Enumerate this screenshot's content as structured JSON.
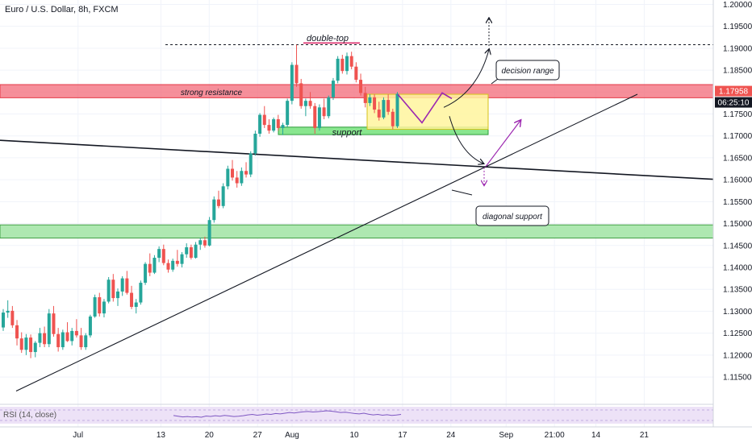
{
  "header": {
    "title": "Euro / U.S. Dollar, 8h, FXCM"
  },
  "chart_data": {
    "type": "candlestick",
    "y_ticks": [
      "1.20000",
      "1.19500",
      "1.19000",
      "1.18500",
      "1.18000",
      "1.17500",
      "1.17000",
      "1.16500",
      "1.16000",
      "1.15500",
      "1.15000",
      "1.14500",
      "1.14000",
      "1.13500",
      "1.13000",
      "1.12500",
      "1.12000",
      "1.11500"
    ],
    "y_tick_values": [
      1.2,
      1.195,
      1.19,
      1.185,
      1.18,
      1.175,
      1.17,
      1.165,
      1.16,
      1.155,
      1.15,
      1.145,
      1.14,
      1.135,
      1.13,
      1.125,
      1.12,
      1.115
    ],
    "ylim": [
      1.1095,
      1.201
    ],
    "x_ticks": [
      "Jul",
      "13",
      "20",
      "27",
      "Aug",
      "10",
      "17",
      "24",
      "Sep",
      "21:00",
      "14",
      "21"
    ],
    "x_tick_days": [
      0,
      12,
      19,
      26,
      31,
      40,
      47,
      54,
      62,
      69,
      75,
      82
    ],
    "xlim": [
      -11.3,
      92.0
    ],
    "last_price": "1.17958",
    "countdown": "06:25:10",
    "annotations": {
      "double_top": "double-top",
      "strong_resistance": "strong resistance",
      "support": "support",
      "decision_range": "decision range",
      "diagonal_support": "diagonal support"
    },
    "zones": {
      "resistance": [
        1.1787,
        1.1817
      ],
      "support": [
        1.1703,
        1.172
      ],
      "lower_support": [
        1.1467,
        1.1497
      ],
      "decision": [
        1.1715,
        1.1795
      ],
      "double_top_line": 1.1908
    },
    "rsi_label": "RSI (14, close)",
    "colors": {
      "up": "#26a69a",
      "down": "#ef5350",
      "arrow": "#9c27b0",
      "line": "#131722"
    },
    "candles": [
      [
        1.1263,
        1.1305,
        1.1255,
        1.1297
      ],
      [
        1.1297,
        1.1325,
        1.1285,
        1.1301
      ],
      [
        1.1301,
        1.1312,
        1.1262,
        1.1268
      ],
      [
        1.1268,
        1.128,
        1.1222,
        1.1238
      ],
      [
        1.1238,
        1.1252,
        1.1205,
        1.1212
      ],
      [
        1.1212,
        1.1248,
        1.12,
        1.124
      ],
      [
        1.124,
        1.1247,
        1.1193,
        1.1207
      ],
      [
        1.1207,
        1.1232,
        1.1195,
        1.1228
      ],
      [
        1.1228,
        1.1262,
        1.1218,
        1.125
      ],
      [
        1.125,
        1.1265,
        1.1218,
        1.1225
      ],
      [
        1.1225,
        1.1305,
        1.1218,
        1.1295
      ],
      [
        1.1295,
        1.1312,
        1.1242,
        1.1248
      ],
      [
        1.1248,
        1.1262,
        1.1208,
        1.1218
      ],
      [
        1.1218,
        1.1258,
        1.1212,
        1.1252
      ],
      [
        1.1252,
        1.1275,
        1.123,
        1.1232
      ],
      [
        1.1232,
        1.1262,
        1.1222,
        1.1255
      ],
      [
        1.1255,
        1.1282,
        1.124,
        1.1245
      ],
      [
        1.1245,
        1.1262,
        1.1212,
        1.1218
      ],
      [
        1.1218,
        1.125,
        1.1212,
        1.1245
      ],
      [
        1.1245,
        1.1292,
        1.124,
        1.1288
      ],
      [
        1.1288,
        1.1338,
        1.1285,
        1.1332
      ],
      [
        1.1332,
        1.1342,
        1.1288,
        1.1295
      ],
      [
        1.1295,
        1.1328,
        1.1286,
        1.1322
      ],
      [
        1.1322,
        1.1378,
        1.1318,
        1.1372
      ],
      [
        1.1372,
        1.1385,
        1.1322,
        1.133
      ],
      [
        1.133,
        1.1352,
        1.1312,
        1.1345
      ],
      [
        1.1345,
        1.138,
        1.1335,
        1.1375
      ],
      [
        1.1375,
        1.1392,
        1.1338,
        1.1342
      ],
      [
        1.1342,
        1.1358,
        1.1305,
        1.131
      ],
      [
        1.131,
        1.1328,
        1.1295,
        1.132
      ],
      [
        1.132,
        1.137,
        1.1315,
        1.1365
      ],
      [
        1.1365,
        1.1412,
        1.136,
        1.1408
      ],
      [
        1.1408,
        1.1432,
        1.138,
        1.1388
      ],
      [
        1.1388,
        1.1428,
        1.1385,
        1.1422
      ],
      [
        1.1422,
        1.1448,
        1.1412,
        1.1442
      ],
      [
        1.1442,
        1.1452,
        1.1405,
        1.141
      ],
      [
        1.141,
        1.1418,
        1.1388,
        1.1395
      ],
      [
        1.1395,
        1.142,
        1.139,
        1.1415
      ],
      [
        1.1415,
        1.144,
        1.1402,
        1.1408
      ],
      [
        1.1408,
        1.1435,
        1.14,
        1.143
      ],
      [
        1.143,
        1.1455,
        1.1422,
        1.1446
      ],
      [
        1.1446,
        1.1452,
        1.1418,
        1.1422
      ],
      [
        1.1422,
        1.1458,
        1.142,
        1.1452
      ],
      [
        1.1452,
        1.1468,
        1.144,
        1.1462
      ],
      [
        1.1462,
        1.147,
        1.1445,
        1.145
      ],
      [
        1.145,
        1.1515,
        1.1448,
        1.1508
      ],
      [
        1.1508,
        1.1562,
        1.1502,
        1.1555
      ],
      [
        1.1555,
        1.1575,
        1.1535,
        1.154
      ],
      [
        1.154,
        1.1592,
        1.1535,
        1.1585
      ],
      [
        1.1585,
        1.1632,
        1.1578,
        1.1625
      ],
      [
        1.1625,
        1.1645,
        1.1598,
        1.1605
      ],
      [
        1.1605,
        1.162,
        1.1582,
        1.1592
      ],
      [
        1.1592,
        1.1628,
        1.1586,
        1.162
      ],
      [
        1.162,
        1.164,
        1.1605,
        1.1612
      ],
      [
        1.1612,
        1.1665,
        1.1606,
        1.166
      ],
      [
        1.166,
        1.1712,
        1.1655,
        1.1705
      ],
      [
        1.1705,
        1.1752,
        1.1698,
        1.1748
      ],
      [
        1.1748,
        1.1768,
        1.1718,
        1.1725
      ],
      [
        1.1725,
        1.1738,
        1.1705,
        1.1712
      ],
      [
        1.1712,
        1.1742,
        1.1708,
        1.1738
      ],
      [
        1.1738,
        1.1748,
        1.1712,
        1.1718
      ],
      [
        1.1718,
        1.173,
        1.1702,
        1.1725
      ],
      [
        1.1725,
        1.1785,
        1.172,
        1.178
      ],
      [
        1.178,
        1.1868,
        1.1772,
        1.1862
      ],
      [
        1.1862,
        1.1908,
        1.1812,
        1.182
      ],
      [
        1.182,
        1.183,
        1.1762,
        1.1768
      ],
      [
        1.1768,
        1.1785,
        1.1745,
        1.178
      ],
      [
        1.178,
        1.18,
        1.1762,
        1.1768
      ],
      [
        1.1768,
        1.1775,
        1.1705,
        1.1718
      ],
      [
        1.1718,
        1.1772,
        1.1712,
        1.1765
      ],
      [
        1.1765,
        1.1785,
        1.1738,
        1.1745
      ],
      [
        1.1745,
        1.1792,
        1.174,
        1.1788
      ],
      [
        1.1788,
        1.1832,
        1.1782,
        1.1826
      ],
      [
        1.1826,
        1.1882,
        1.182,
        1.1876
      ],
      [
        1.1876,
        1.1885,
        1.1842,
        1.1848
      ],
      [
        1.1848,
        1.189,
        1.184,
        1.1882
      ],
      [
        1.1882,
        1.1892,
        1.1852,
        1.1858
      ],
      [
        1.1858,
        1.1868,
        1.1822,
        1.1828
      ],
      [
        1.1828,
        1.1842,
        1.1792,
        1.1798
      ],
      [
        1.1798,
        1.1812,
        1.1765,
        1.1775
      ],
      [
        1.1775,
        1.1795,
        1.1768,
        1.1788
      ],
      [
        1.1788,
        1.1795,
        1.1752,
        1.176
      ],
      [
        1.176,
        1.1778,
        1.1735,
        1.1742
      ],
      [
        1.1742,
        1.1788,
        1.1738,
        1.1782
      ],
      [
        1.1782,
        1.1795,
        1.1748,
        1.1755
      ],
      [
        1.1755,
        1.1762,
        1.1715,
        1.1722
      ],
      [
        1.1722,
        1.18,
        1.1718,
        1.1796
      ]
    ],
    "rsi_values": [
      48,
      44,
      40,
      42,
      39,
      41,
      38,
      45,
      43,
      47,
      44,
      49,
      46,
      42,
      44,
      47,
      52,
      55,
      50,
      53,
      57,
      55,
      60,
      58,
      62,
      66,
      63,
      67,
      70,
      72,
      69,
      71,
      73,
      76,
      74,
      70,
      66,
      68,
      64,
      60,
      58,
      62,
      56,
      52,
      55,
      50,
      53,
      49,
      51,
      55
    ]
  }
}
